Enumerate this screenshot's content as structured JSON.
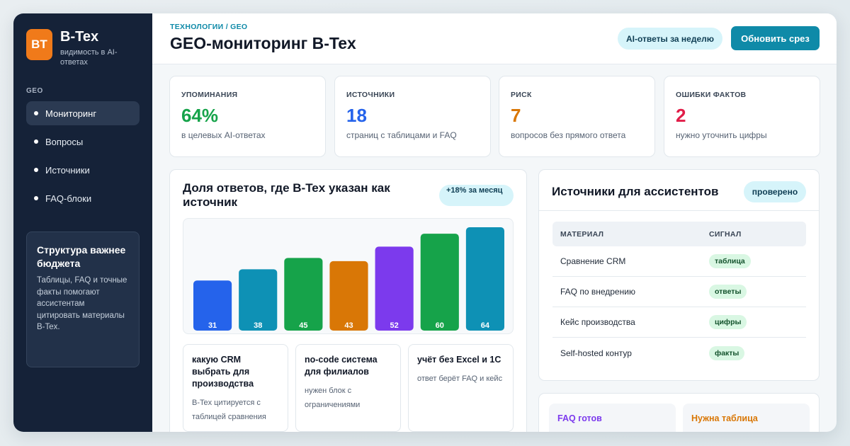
{
  "sidebar": {
    "logo_initials": "BT",
    "app_name": "B-Tex",
    "app_subtitle": "видимость в AI-ответах",
    "section_label": "GEO",
    "items": [
      {
        "label": "Мониторинг",
        "active": true
      },
      {
        "label": "Вопросы",
        "active": false
      },
      {
        "label": "Источники",
        "active": false
      },
      {
        "label": "FAQ-блоки",
        "active": false
      }
    ],
    "card": {
      "title": "Структура важнее бюджета",
      "text": "Таблицы, FAQ и точные факты помогают ассистентам цитировать материалы B-Tex."
    }
  },
  "header": {
    "breadcrumb": "ТЕХНОЛОГИИ / GEO",
    "title": "GEO-мониторинг B-Tex",
    "period_pill": "AI-ответы за неделю",
    "refresh_button": "Обновить срез"
  },
  "kpis": [
    {
      "label": "УПОМИНАНИЯ",
      "value": "64%",
      "sub": "в целевых AI-ответах",
      "color": "#16a34a"
    },
    {
      "label": "ИСТОЧНИКИ",
      "value": "18",
      "sub": "страниц с таблицами и FAQ",
      "color": "#2563eb"
    },
    {
      "label": "РИСК",
      "value": "7",
      "sub": "вопросов без прямого ответа",
      "color": "#d97706"
    },
    {
      "label": "ОШИБКИ ФАКТОВ",
      "value": "2",
      "sub": "нужно уточнить цифры",
      "color": "#e11d48"
    }
  ],
  "chart_panel": {
    "title": "Доля ответов, где B-Tex указан как источник",
    "badge": "+18% за месяц"
  },
  "chart_data": {
    "type": "bar",
    "categories": [
      "",
      "",
      "",
      "",
      "",
      "",
      ""
    ],
    "values": [
      31,
      38,
      45,
      43,
      52,
      60,
      64
    ],
    "colors": [
      "#2563eb",
      "#0e91b5",
      "#16a34a",
      "#d97706",
      "#7c3aed",
      "#16a34a",
      "#0e91b5"
    ],
    "ylim": [
      0,
      64
    ],
    "title": "",
    "xlabel": "",
    "ylabel": ""
  },
  "questions": [
    {
      "title": "какую CRM выбрать для производства",
      "note": "B-Tex цитируется с таблицей сравнения"
    },
    {
      "title": "no-code система для филиалов",
      "note": "нужен блок с ограничениями"
    },
    {
      "title": "учёт без Excel и 1С",
      "note": "ответ берёт FAQ и кейс"
    }
  ],
  "sources": {
    "title": "Источники для ассистентов",
    "badge": "проверено",
    "columns": [
      "МАТЕРИАЛ",
      "СИГНАЛ"
    ],
    "rows": [
      {
        "material": "Сравнение CRM",
        "signal": "таблица"
      },
      {
        "material": "FAQ по внедрению",
        "signal": "ответы"
      },
      {
        "material": "Кейс производства",
        "signal": "цифры"
      },
      {
        "material": "Self-hosted контур",
        "signal": "факты"
      }
    ]
  },
  "bottom": {
    "faq_ready": "FAQ готов",
    "need_table": "Нужна таблица",
    "faq_color": "#7c3aed",
    "table_color": "#d97706"
  }
}
